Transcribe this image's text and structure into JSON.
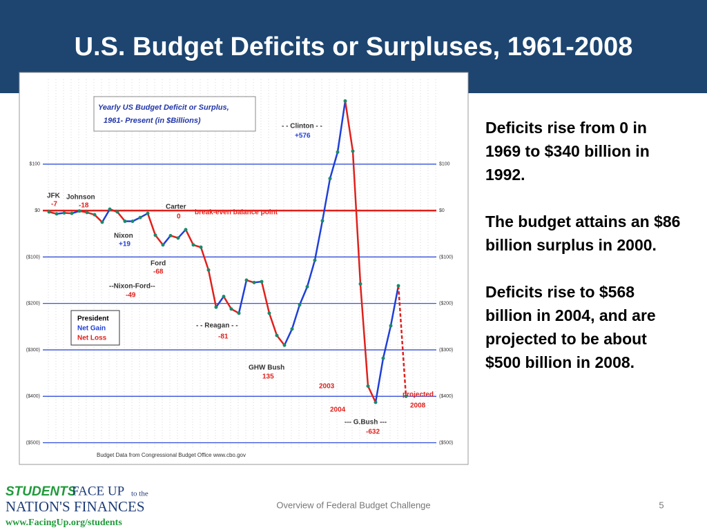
{
  "header": {
    "title": "U.S. Budget Deficits or Surpluses, 1961-2008"
  },
  "chart_data": {
    "type": "line",
    "title_lines": [
      "Yearly US Budget Deficit or Surplus,",
      "1961- Present (in $Billions)"
    ],
    "x": [
      1961,
      1962,
      1963,
      1964,
      1965,
      1966,
      1967,
      1968,
      1969,
      1970,
      1971,
      1972,
      1973,
      1974,
      1975,
      1976,
      1977,
      1978,
      1979,
      1980,
      1981,
      1982,
      1983,
      1984,
      1985,
      1986,
      1987,
      1988,
      1989,
      1990,
      1991,
      1992,
      1993,
      1994,
      1995,
      1996,
      1997,
      1998,
      1999,
      2000,
      2001,
      2002,
      2003,
      2004,
      2005,
      2006,
      2007,
      2008
    ],
    "series": [
      {
        "name": "Yearly US Budget Deficit or Surplus",
        "values": [
          -3,
          -7,
          -5,
          -6,
          -1,
          -4,
          -9,
          -25,
          3,
          -3,
          -23,
          -23,
          -15,
          -6,
          -53,
          -74,
          -54,
          -59,
          -41,
          -74,
          -79,
          -128,
          -208,
          -185,
          -212,
          -221,
          -150,
          -155,
          -153,
          -221,
          -269,
          -290,
          -255,
          -203,
          -164,
          -107,
          -22,
          69,
          126,
          236,
          128,
          -158,
          -378,
          -413,
          -318,
          -248,
          -162,
          -400
        ]
      }
    ],
    "gain_color": "#1f3fd8",
    "loss_color": "#e0201b",
    "xlim": [
      1960,
      2012
    ],
    "ylim": [
      -520,
      290
    ],
    "yticks": [
      {
        "value": 100,
        "label": "$100"
      },
      {
        "value": 0,
        "label": "$0"
      },
      {
        "value": -100,
        "label": "($100)"
      },
      {
        "value": -200,
        "label": "($200)"
      },
      {
        "value": -300,
        "label": "($300)"
      },
      {
        "value": -400,
        "label": "($400)"
      },
      {
        "value": -500,
        "label": "($500)"
      }
    ],
    "grid": true,
    "legend": [
      "President",
      "Net Gain",
      "Net Loss"
    ],
    "annotations": [
      "- - Clinton - -",
      "+576",
      "JFK",
      "-7",
      "Johnson",
      "-18",
      "Nixon",
      "+19",
      "Ford",
      "-68",
      "--Nixon-Ford--",
      "-49",
      "Carter",
      "0",
      "- - Reagan - -",
      "-81",
      "GHW Bush",
      "135",
      "--- G.Bush ---",
      "-632",
      "break-even balance point",
      "projected",
      "2008",
      "2003",
      "2004"
    ],
    "source": "Budget Data from Congressional Budget Office  www.cbo.gov"
  },
  "bullets": [
    "Deficits rise from 0 in 1969 to $340 billion in 1992.",
    "The budget attains an $86 billion surplus in 2000.",
    "Deficits rise to $568 billion in 2004, and are projected to be about $500 billion in 2008."
  ],
  "footer": {
    "logo": [
      "STUDENTS",
      "FACE UP",
      "to the",
      "NATION'S FINANCES",
      "www.FacingUp.org/students"
    ],
    "caption": "Overview of Federal Budget Challenge",
    "page": "5"
  }
}
